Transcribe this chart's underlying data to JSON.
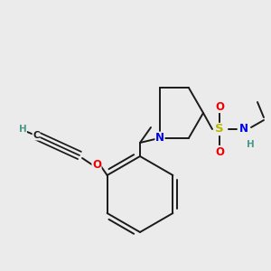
{
  "bg_color": "#ebebeb",
  "bond_color": "#1a1a1a",
  "bond_width": 1.4,
  "dbo": 0.013,
  "fs": 8.0,
  "fsH": 7.0,
  "colors": {
    "N": "#0000ee",
    "O": "#ee0000",
    "S": "#b8b800",
    "H": "#4a9a8a",
    "C": "#1a1a1a"
  },
  "xlim": [
    0,
    300
  ],
  "ylim": [
    0,
    300
  ]
}
